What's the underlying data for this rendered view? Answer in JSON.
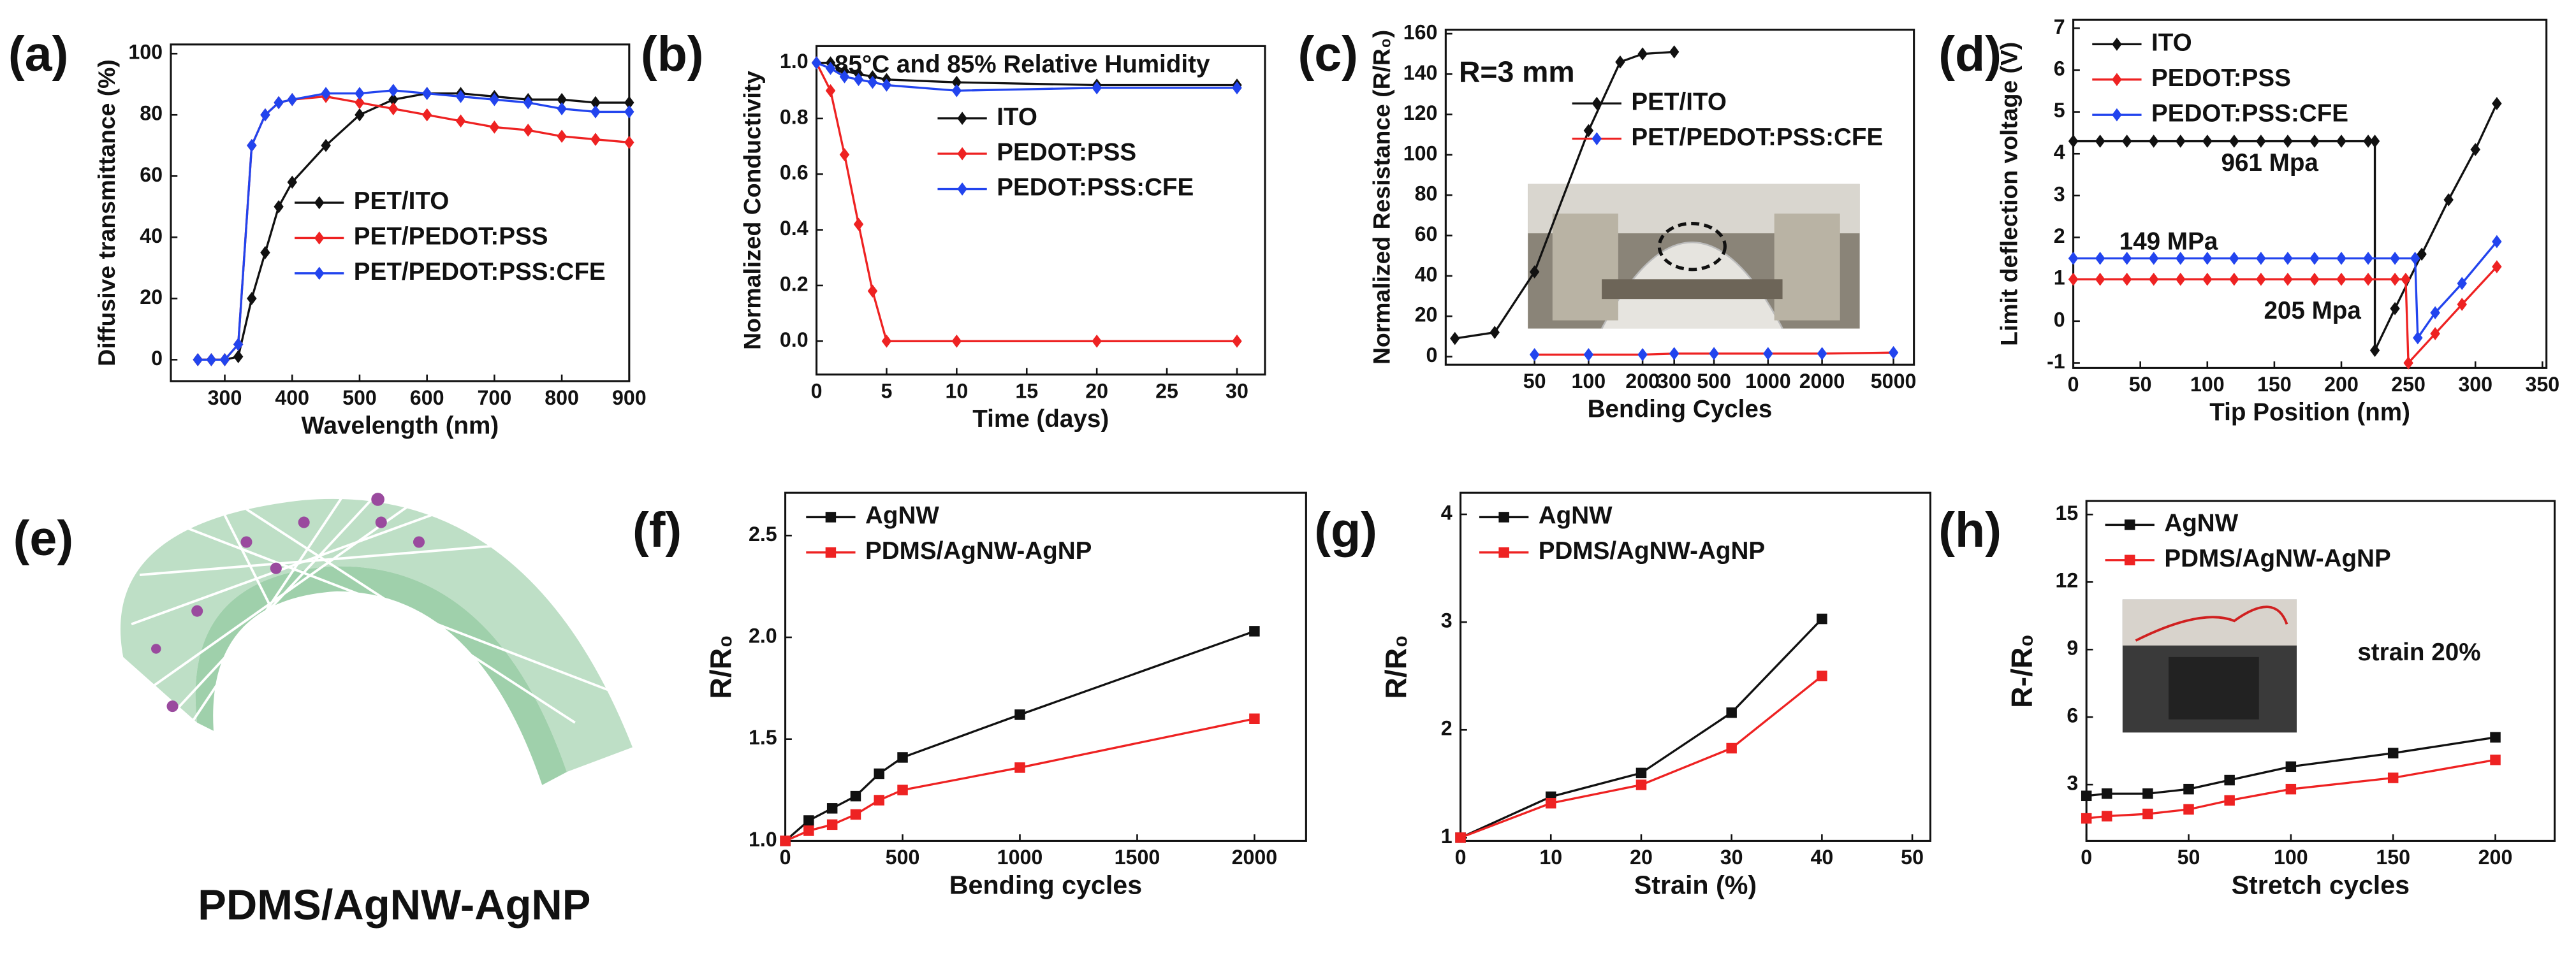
{
  "chart_data": [
    {
      "type": "line",
      "label": "(a)",
      "xlabel": "Wavelength (nm)",
      "ylabel": "Diffusive transmittance (%)",
      "xlim": [
        220,
        900
      ],
      "ylim": [
        -7,
        103
      ],
      "xticks": [
        300,
        400,
        500,
        600,
        700,
        800,
        900
      ],
      "yticks": [
        0,
        20,
        40,
        60,
        80,
        100
      ],
      "legend": "center",
      "marker": "diamond",
      "series": [
        {
          "name": "PET/ITO",
          "color": "#111111",
          "x": [
            260,
            280,
            300,
            320,
            340,
            360,
            380,
            400,
            450,
            500,
            550,
            600,
            650,
            700,
            750,
            800,
            850,
            900
          ],
          "values": [
            0,
            0,
            0,
            1,
            20,
            35,
            50,
            58,
            70,
            80,
            85,
            87,
            87,
            86,
            85,
            85,
            84,
            84
          ]
        },
        {
          "name": "PET/PEDOT:PSS",
          "color": "#ee2222",
          "x": [
            260,
            280,
            300,
            320,
            340,
            360,
            380,
            400,
            450,
            500,
            550,
            600,
            650,
            700,
            750,
            800,
            850,
            900
          ],
          "values": [
            0,
            0,
            0,
            5,
            70,
            80,
            84,
            85,
            86,
            84,
            82,
            80,
            78,
            76,
            75,
            73,
            72,
            71
          ]
        },
        {
          "name": "PET/PEDOT:PSS:CFE",
          "color": "#2244ee",
          "x": [
            260,
            280,
            300,
            320,
            340,
            360,
            380,
            400,
            450,
            500,
            550,
            600,
            650,
            700,
            750,
            800,
            850,
            900
          ],
          "values": [
            0,
            0,
            0,
            5,
            70,
            80,
            84,
            85,
            87,
            87,
            88,
            87,
            86,
            85,
            84,
            82,
            81,
            81
          ]
        }
      ]
    },
    {
      "type": "line",
      "label": "(b)",
      "xlabel": "Time (days)",
      "ylabel": "Normalized Conductivity",
      "xlim": [
        0,
        32
      ],
      "ylim": [
        -0.12,
        1.06
      ],
      "xticks": [
        0,
        5,
        10,
        15,
        20,
        25,
        30
      ],
      "yticks": [
        {
          "value": 0,
          "label": "0.0"
        },
        0.2,
        0.4,
        0.6,
        0.8,
        {
          "value": 1,
          "label": "1.0"
        }
      ],
      "legend": "upper center",
      "marker": "diamond",
      "annotations": [
        {
          "text": "85°C and 85% Relative Humidity",
          "color": "#5a9e1a"
        }
      ],
      "series": [
        {
          "name": "ITO",
          "color": "#111111",
          "x": [
            0,
            1,
            2,
            3,
            4,
            5,
            10,
            20,
            30
          ],
          "values": [
            1,
            1,
            0.97,
            0.96,
            0.95,
            0.94,
            0.93,
            0.92,
            0.92
          ]
        },
        {
          "name": "PEDOT:PSS",
          "color": "#ee2222",
          "x": [
            0,
            1,
            2,
            3,
            4,
            5,
            10,
            20,
            30
          ],
          "values": [
            1,
            0.9,
            0.67,
            0.42,
            0.18,
            0,
            0,
            0,
            0
          ]
        },
        {
          "name": "PEDOT:PSS:CFE",
          "color": "#2244ee",
          "x": [
            0,
            1,
            2,
            3,
            4,
            5,
            10,
            20,
            30
          ],
          "values": [
            1,
            0.98,
            0.95,
            0.94,
            0.93,
            0.92,
            0.9,
            0.91,
            0.91
          ]
        }
      ]
    },
    {
      "type": "line",
      "label": "(c)",
      "xlabel": "Bending Cycles",
      "ylabel": "Normalized Resistance (R/R₀)",
      "xscale": "log",
      "xlim": [
        16,
        6500
      ],
      "ylim": [
        -4,
        162
      ],
      "xticks": [
        50,
        100,
        200,
        300,
        500,
        1000,
        2000,
        5000
      ],
      "yticks": [
        0,
        20,
        40,
        60,
        80,
        100,
        120,
        140,
        160
      ],
      "legend": "upper center",
      "marker": "diamond",
      "annotations": [
        {
          "text": "R=3 mm",
          "color": "#111111"
        }
      ],
      "series": [
        {
          "name": "PET/ITO",
          "color": "#111111",
          "x": [
            18,
            30,
            50,
            100,
            150,
            200,
            300
          ],
          "values": [
            9,
            12,
            42,
            112,
            146,
            150,
            151
          ]
        },
        {
          "name": "PET/PEDOT:PSS:CFE",
          "color": "#ee2222",
          "marker_color": "#2244ee",
          "x": [
            50,
            100,
            200,
            300,
            500,
            1000,
            2000,
            5000
          ],
          "values": [
            1,
            1,
            1,
            1.5,
            1.5,
            1.5,
            1.5,
            2
          ]
        }
      ]
    },
    {
      "type": "line",
      "label": "(d)",
      "xlabel": "Tip Position (nm)",
      "ylabel": "Limit deflection voltage (V)",
      "xlim": [
        0,
        353
      ],
      "ylim": [
        -1.12,
        7.2
      ],
      "xticks": [
        0,
        50,
        100,
        150,
        200,
        250,
        300,
        350
      ],
      "yticks": [
        -1,
        0,
        1,
        2,
        3,
        4,
        5,
        6,
        7
      ],
      "legend": "upper left",
      "marker": "diamond",
      "annotations": [
        {
          "text": "961 Mpa",
          "color": "#111111"
        },
        {
          "text": "149 MPa",
          "color": "#2244ee"
        },
        {
          "text": "205 Mpa",
          "color": "#ee2222"
        }
      ],
      "series": [
        {
          "name": "ITO",
          "color": "#111111",
          "x": [
            0,
            20,
            40,
            60,
            80,
            100,
            120,
            140,
            160,
            180,
            200,
            220,
            225,
            225,
            240,
            260,
            280,
            300,
            316
          ],
          "values": [
            4.3,
            4.3,
            4.3,
            4.3,
            4.3,
            4.3,
            4.3,
            4.3,
            4.3,
            4.3,
            4.3,
            4.3,
            4.3,
            -0.7,
            0.3,
            1.6,
            2.9,
            4.1,
            5.2
          ]
        },
        {
          "name": "PEDOT:PSS",
          "color": "#ee2222",
          "x": [
            0,
            20,
            40,
            60,
            80,
            100,
            120,
            140,
            160,
            180,
            200,
            220,
            240,
            248,
            250,
            270,
            290,
            316
          ],
          "values": [
            1,
            1,
            1,
            1,
            1,
            1,
            1,
            1,
            1,
            1,
            1,
            1,
            1,
            1,
            -1,
            -0.3,
            0.4,
            1.3
          ]
        },
        {
          "name": "PEDOT:PSS:CFE",
          "color": "#2244ee",
          "x": [
            0,
            20,
            40,
            60,
            80,
            100,
            120,
            140,
            160,
            180,
            200,
            220,
            240,
            255,
            257,
            270,
            290,
            316
          ],
          "values": [
            1.5,
            1.5,
            1.5,
            1.5,
            1.5,
            1.5,
            1.5,
            1.5,
            1.5,
            1.5,
            1.5,
            1.5,
            1.5,
            1.5,
            -0.4,
            0.2,
            0.9,
            1.9
          ]
        }
      ]
    },
    {
      "type": "line",
      "label": "(f)",
      "xlabel": "Bending cycles",
      "ylabel": "R/R₀",
      "xlim": [
        0,
        2220
      ],
      "ylim": [
        1,
        2.71
      ],
      "xticks": [
        0,
        500,
        1000,
        1500,
        2000
      ],
      "yticks": [
        {
          "value": 1,
          "label": "1.0"
        },
        1.5,
        {
          "value": 2,
          "label": "2.0"
        },
        2.5
      ],
      "legend": "upper left",
      "marker": "square",
      "series": [
        {
          "name": "AgNW",
          "color": "#111111",
          "x": [
            0,
            100,
            200,
            300,
            400,
            500,
            1000,
            2000
          ],
          "values": [
            1,
            1.1,
            1.16,
            1.22,
            1.33,
            1.41,
            1.62,
            2.03
          ]
        },
        {
          "name": "PDMS/AgNW-AgNP",
          "color": "#ee2222",
          "x": [
            0,
            100,
            200,
            300,
            400,
            500,
            1000,
            2000
          ],
          "values": [
            1,
            1.05,
            1.08,
            1.13,
            1.2,
            1.25,
            1.36,
            1.6
          ]
        }
      ]
    },
    {
      "type": "line",
      "label": "(g)",
      "xlabel": "Strain (%)",
      "ylabel": "R/R₀",
      "xlim": [
        0,
        52
      ],
      "ylim": [
        0.97,
        4.2
      ],
      "xticks": [
        0,
        10,
        20,
        30,
        40,
        50
      ],
      "yticks": [
        1,
        2,
        3,
        4
      ],
      "legend": "upper left",
      "marker": "square",
      "series": [
        {
          "name": "AgNW",
          "color": "#111111",
          "x": [
            0,
            10,
            20,
            30,
            40
          ],
          "values": [
            1,
            1.38,
            1.6,
            2.16,
            3.03
          ]
        },
        {
          "name": "PDMS/AgNW-AgNP",
          "color": "#ee2222",
          "x": [
            0,
            10,
            20,
            30,
            40
          ],
          "values": [
            1,
            1.32,
            1.49,
            1.83,
            2.5
          ]
        }
      ]
    },
    {
      "type": "line",
      "label": "(h)",
      "xlabel": "Stretch cycles",
      "ylabel": "R-/R₀",
      "xlim": [
        0,
        229
      ],
      "ylim": [
        0.5,
        15.6
      ],
      "xticks": [
        0,
        50,
        100,
        150,
        200
      ],
      "yticks": [
        3,
        6,
        9,
        12,
        15
      ],
      "legend": "upper left",
      "marker": "square",
      "annotations": [
        {
          "text": "strain 20%",
          "color": "#111111"
        }
      ],
      "series": [
        {
          "name": "AgNW",
          "color": "#111111",
          "x": [
            0,
            10,
            30,
            50,
            70,
            100,
            150,
            200
          ],
          "values": [
            2.5,
            2.6,
            2.6,
            2.8,
            3.2,
            3.8,
            4.4,
            5.1
          ]
        },
        {
          "name": "PDMS/AgNW-AgNP",
          "color": "#ee2222",
          "x": [
            0,
            10,
            30,
            50,
            70,
            100,
            150,
            200
          ],
          "values": [
            1.5,
            1.6,
            1.7,
            1.9,
            2.3,
            2.8,
            3.3,
            4.1
          ]
        }
      ]
    }
  ],
  "illustration": {
    "label": "(e)",
    "caption": "PDMS/AgNW-AgNP"
  }
}
